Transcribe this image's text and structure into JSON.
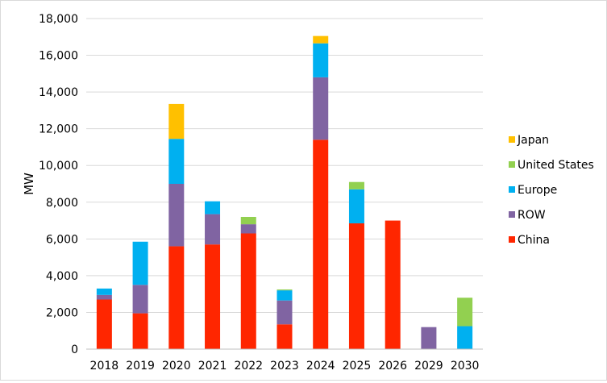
{
  "chart_data": {
    "type": "bar",
    "stacked": true,
    "title": "",
    "xlabel": "",
    "ylabel": "MW",
    "ylim": [
      0,
      18000
    ],
    "ytick_step": 2000,
    "yticks": [
      "0",
      "2,000",
      "4,000",
      "6,000",
      "8,000",
      "10,000",
      "12,000",
      "14,000",
      "16,000",
      "18,000"
    ],
    "grid": true,
    "legend_position": "right",
    "categories": [
      "2018",
      "2019",
      "2020",
      "2021",
      "2022",
      "2023",
      "2024",
      "2025",
      "2026",
      "2029",
      "2030"
    ],
    "series": [
      {
        "name": "China",
        "color": "#ff2600",
        "values": [
          2700,
          1950,
          5600,
          5700,
          6300,
          1350,
          11400,
          6850,
          7000,
          0,
          0
        ]
      },
      {
        "name": "ROW",
        "color": "#8064a2",
        "values": [
          250,
          1550,
          3400,
          1650,
          500,
          1300,
          3400,
          0,
          0,
          1200,
          0
        ]
      },
      {
        "name": "Europe",
        "color": "#00b0f0",
        "values": [
          350,
          2350,
          2450,
          700,
          0,
          550,
          1850,
          1850,
          0,
          0,
          1250
        ]
      },
      {
        "name": "United States",
        "color": "#92d050",
        "values": [
          0,
          0,
          0,
          0,
          400,
          50,
          0,
          400,
          0,
          0,
          1550
        ]
      },
      {
        "name": "Japan",
        "color": "#ffc000",
        "values": [
          0,
          0,
          1900,
          0,
          0,
          0,
          400,
          0,
          0,
          0,
          0
        ]
      }
    ]
  }
}
